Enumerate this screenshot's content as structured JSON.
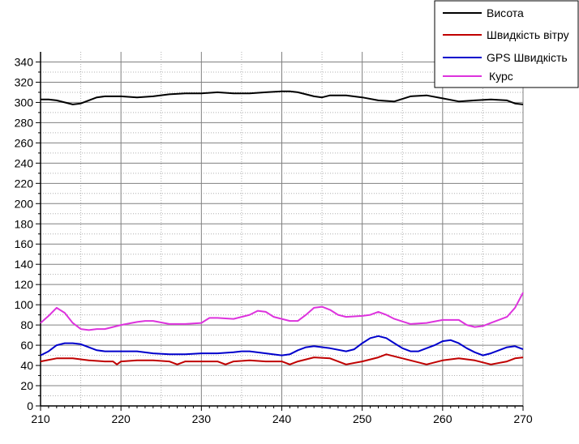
{
  "chart_data": {
    "type": "line",
    "title": "",
    "xlabel": "",
    "ylabel": "",
    "xlim": [
      210,
      270
    ],
    "ylim": [
      0,
      350
    ],
    "x_ticks": [
      210,
      220,
      230,
      240,
      250,
      260,
      270
    ],
    "y_ticks": [
      0,
      20,
      40,
      60,
      80,
      100,
      120,
      140,
      160,
      180,
      200,
      220,
      240,
      260,
      280,
      300,
      320,
      340
    ],
    "grid": true,
    "legend_position": "top-right",
    "series": [
      {
        "name": "Висота",
        "color": "#000000",
        "x": [
          210,
          211,
          212,
          213,
          214,
          215,
          216,
          217,
          218,
          220,
          222,
          224,
          226,
          228,
          230,
          232,
          234,
          236,
          238,
          240,
          241,
          242,
          244,
          245,
          246,
          248,
          250,
          252,
          254,
          256,
          258,
          260,
          262,
          264,
          266,
          268,
          269,
          270
        ],
        "y": [
          303,
          303,
          302,
          300,
          298,
          299,
          302,
          305,
          306,
          306,
          305,
          306,
          308,
          309,
          309,
          310,
          309,
          309,
          310,
          311,
          311,
          310,
          306,
          305,
          307,
          307,
          305,
          302,
          301,
          306,
          307,
          304,
          301,
          302,
          303,
          302,
          299,
          298
        ]
      },
      {
        "name": "Швидкість вітру",
        "color": "#c00000",
        "x": [
          210,
          212,
          214,
          216,
          218,
          219,
          219.5,
          220,
          222,
          224,
          226,
          227,
          228,
          230,
          232,
          233,
          234,
          236,
          238,
          240,
          241,
          242,
          244,
          246,
          248,
          250,
          252,
          253,
          254,
          256,
          258,
          260,
          262,
          264,
          266,
          268,
          269,
          270
        ],
        "y": [
          44,
          47,
          47,
          45,
          44,
          44,
          41,
          44,
          45,
          45,
          44,
          41,
          44,
          44,
          44,
          41,
          44,
          45,
          44,
          44,
          41,
          44,
          48,
          47,
          41,
          44,
          48,
          51,
          49,
          45,
          41,
          45,
          47,
          45,
          41,
          44,
          47,
          48
        ]
      },
      {
        "name": "GPS Швидкість",
        "color": "#0000cc",
        "x": [
          210,
          211,
          212,
          213,
          214,
          215,
          216,
          217,
          218,
          220,
          222,
          224,
          226,
          228,
          230,
          232,
          234,
          235,
          236,
          238,
          240,
          241,
          242,
          243,
          244,
          246,
          248,
          249,
          250,
          251,
          252,
          253,
          254,
          255,
          256,
          257,
          258,
          259,
          260,
          261,
          262,
          263,
          264,
          265,
          266,
          267,
          268,
          269,
          270
        ],
        "y": [
          50,
          54,
          60,
          62,
          62,
          61,
          58,
          55,
          54,
          54,
          54,
          52,
          51,
          51,
          52,
          52,
          53,
          54,
          54,
          52,
          50,
          51,
          55,
          58,
          59,
          57,
          54,
          56,
          62,
          67,
          69,
          67,
          62,
          57,
          54,
          54,
          57,
          60,
          64,
          65,
          62,
          57,
          53,
          50,
          52,
          55,
          58,
          59,
          56
        ]
      },
      {
        "name": "Курс",
        "color": "#dd33dd",
        "x": [
          210,
          211,
          212,
          213,
          214,
          215,
          216,
          217,
          218,
          220,
          222,
          223,
          224,
          226,
          228,
          230,
          231,
          232,
          234,
          235,
          236,
          237,
          238,
          239,
          240,
          241,
          242,
          243,
          244,
          245,
          246,
          247,
          248,
          250,
          251,
          252,
          253,
          254,
          256,
          258,
          260,
          262,
          263,
          264,
          265,
          266,
          268,
          269,
          270
        ],
        "y": [
          82,
          89,
          97,
          92,
          82,
          76,
          75,
          76,
          76,
          80,
          83,
          84,
          84,
          81,
          81,
          82,
          87,
          87,
          86,
          88,
          90,
          94,
          93,
          88,
          86,
          84,
          84,
          90,
          97,
          98,
          95,
          90,
          88,
          89,
          90,
          93,
          90,
          86,
          81,
          82,
          85,
          85,
          80,
          78,
          79,
          82,
          88,
          97,
          112
        ]
      }
    ]
  }
}
